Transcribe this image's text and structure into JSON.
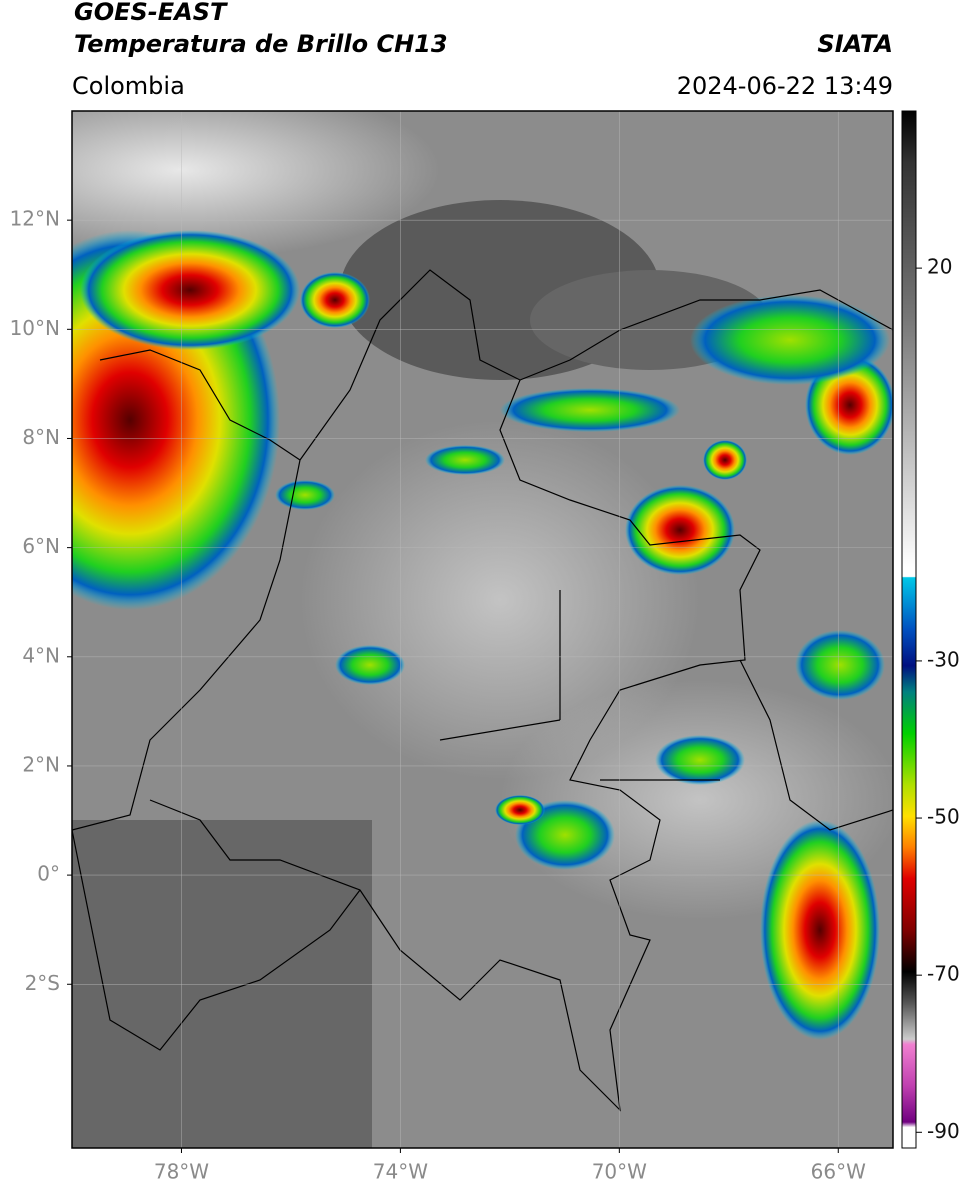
{
  "header": {
    "title": "GOES-EAST",
    "subtitle": "Temperatura de Brillo CH13",
    "source": "SIATA",
    "region": "Colombia",
    "timestamp": "2024-06-22 13:49"
  },
  "map": {
    "xlim": [
      -80,
      -65
    ],
    "ylim": [
      -5,
      14
    ],
    "xticks": [
      {
        "value": -78,
        "label": "78°W"
      },
      {
        "value": -74,
        "label": "74°W"
      },
      {
        "value": -70,
        "label": "70°W"
      },
      {
        "value": -66,
        "label": "66°W"
      }
    ],
    "yticks": [
      {
        "value": 12,
        "label": "12°N"
      },
      {
        "value": 10,
        "label": "10°N"
      },
      {
        "value": 8,
        "label": "8°N"
      },
      {
        "value": 6,
        "label": "6°N"
      },
      {
        "value": 4,
        "label": "4°N"
      },
      {
        "value": 2,
        "label": "2°N"
      },
      {
        "value": 0,
        "label": "0°"
      },
      {
        "value": -2,
        "label": "2°S"
      }
    ],
    "grid": true
  },
  "colorbar": {
    "lim": [
      -92,
      40
    ],
    "ticks": [
      20,
      -30,
      -50,
      -70,
      -90
    ]
  }
}
